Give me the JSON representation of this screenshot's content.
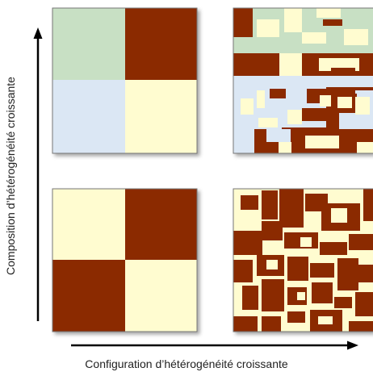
{
  "labels": {
    "x_axis": "Configuration d’hétérogénéité croissante",
    "y_axis": "Composition d’hétérogénéité croissante"
  },
  "colors": {
    "brown": "#8b2a00",
    "cream": "#fffcd0",
    "green": "#c8e0c4",
    "blue": "#dbe7f4",
    "panel_border": "#777777",
    "arrow": "#000000"
  },
  "panels": [
    {
      "name": "top-left-panel",
      "description_key": "composition-high-configuration-low"
    },
    {
      "name": "top-right-panel",
      "description_key": "composition-high-configuration-high"
    },
    {
      "name": "bottom-left-panel",
      "description_key": "composition-low-configuration-low"
    },
    {
      "name": "bottom-right-panel",
      "description_key": "composition-low-configuration-high"
    }
  ]
}
